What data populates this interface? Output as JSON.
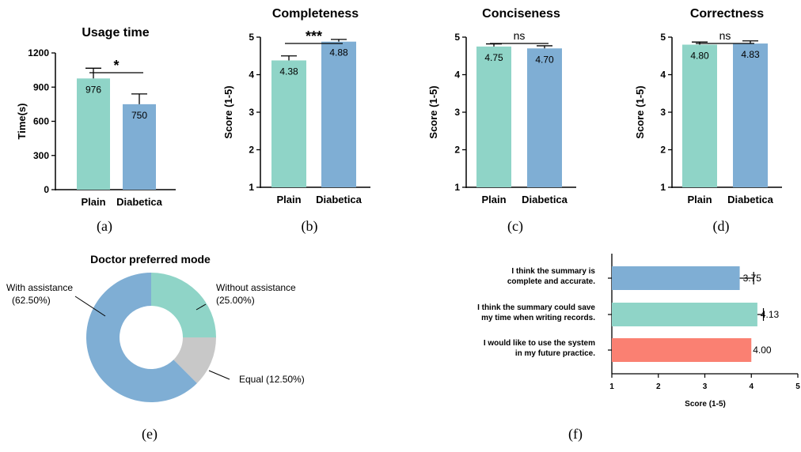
{
  "colors": {
    "plain": "#8fd4c7",
    "diabetica": "#7faed4",
    "future": "#fa8072",
    "equal": "#c8c8c8",
    "axis": "#000000"
  },
  "chart_data": [
    {
      "id": "a",
      "type": "bar",
      "panel_label": "(a)",
      "title": "Usage time",
      "ylabel": "Time(s)",
      "categories": [
        "Plain",
        "Diabetica"
      ],
      "values": [
        976,
        750
      ],
      "error": [
        90,
        90
      ],
      "value_labels": [
        "976",
        "750"
      ],
      "ylim": [
        0,
        1200
      ],
      "yticks": [
        0,
        300,
        600,
        900,
        1200
      ],
      "ytick_labels": [
        "0",
        "300",
        "600",
        "900",
        "1200"
      ],
      "significance": "*"
    },
    {
      "id": "b",
      "type": "bar",
      "panel_label": "(b)",
      "title": "Completeness",
      "ylabel": "Score (1-5)",
      "categories": [
        "Plain",
        "Diabetica"
      ],
      "values": [
        4.38,
        4.88
      ],
      "error": [
        0.12,
        0.06
      ],
      "value_labels": [
        "4.38",
        "4.88"
      ],
      "ylim": [
        1,
        5
      ],
      "yticks": [
        1,
        2,
        3,
        4,
        5
      ],
      "ytick_labels": [
        "1",
        "2",
        "3",
        "4",
        "5"
      ],
      "significance": "***"
    },
    {
      "id": "c",
      "type": "bar",
      "panel_label": "(c)",
      "title": "Conciseness",
      "ylabel": "Score (1-5)",
      "categories": [
        "Plain",
        "Diabetica"
      ],
      "values": [
        4.75,
        4.7
      ],
      "error": [
        0.07,
        0.07
      ],
      "value_labels": [
        "4.75",
        "4.70"
      ],
      "ylim": [
        1,
        5
      ],
      "yticks": [
        1,
        2,
        3,
        4,
        5
      ],
      "ytick_labels": [
        "1",
        "2",
        "3",
        "4",
        "5"
      ],
      "significance": "ns"
    },
    {
      "id": "d",
      "type": "bar",
      "panel_label": "(d)",
      "title": "Correctness",
      "ylabel": "Score (1-5)",
      "categories": [
        "Plain",
        "Diabetica"
      ],
      "values": [
        4.8,
        4.83
      ],
      "error": [
        0.07,
        0.07
      ],
      "value_labels": [
        "4.80",
        "4.83"
      ],
      "ylim": [
        1,
        5
      ],
      "yticks": [
        1,
        2,
        3,
        4,
        5
      ],
      "ytick_labels": [
        "1",
        "2",
        "3",
        "4",
        "5"
      ],
      "significance": "ns"
    },
    {
      "id": "e",
      "type": "pie",
      "donut": true,
      "panel_label": "(e)",
      "title": "Doctor preferred mode",
      "slices": [
        {
          "name": "Without assistance",
          "value": 25.0,
          "label_lines": [
            "Without assistance",
            "(25.00%)"
          ],
          "color_key": "plain"
        },
        {
          "name": "Equal",
          "value": 12.5,
          "label_lines": [
            "Equal (12.50%)"
          ],
          "color_key": "equal"
        },
        {
          "name": "With assistance",
          "value": 62.5,
          "label_lines": [
            "With assistance",
            "(62.50%)"
          ],
          "color_key": "diabetica"
        }
      ]
    },
    {
      "id": "f",
      "type": "bar",
      "orientation": "horizontal",
      "panel_label": "(f)",
      "xlabel": "Score (1-5)",
      "xlim": [
        1,
        5
      ],
      "xticks": [
        1,
        2,
        3,
        4,
        5
      ],
      "xtick_labels": [
        "1",
        "2",
        "3",
        "4",
        "5"
      ],
      "bars": [
        {
          "label_lines": [
            "I think the summary is",
            "complete and accurate."
          ],
          "value": 3.75,
          "value_label": "3.75",
          "error": 0.3,
          "color_key": "diabetica"
        },
        {
          "label_lines": [
            "I think the summary could save",
            "my time when writing records."
          ],
          "value": 4.13,
          "value_label": "4.13",
          "error": 0.13,
          "color_key": "plain"
        },
        {
          "label_lines": [
            "I would like to use the system",
            "in my future practice."
          ],
          "value": 4.0,
          "value_label": "4.00",
          "error": 0,
          "color_key": "future"
        }
      ]
    }
  ]
}
